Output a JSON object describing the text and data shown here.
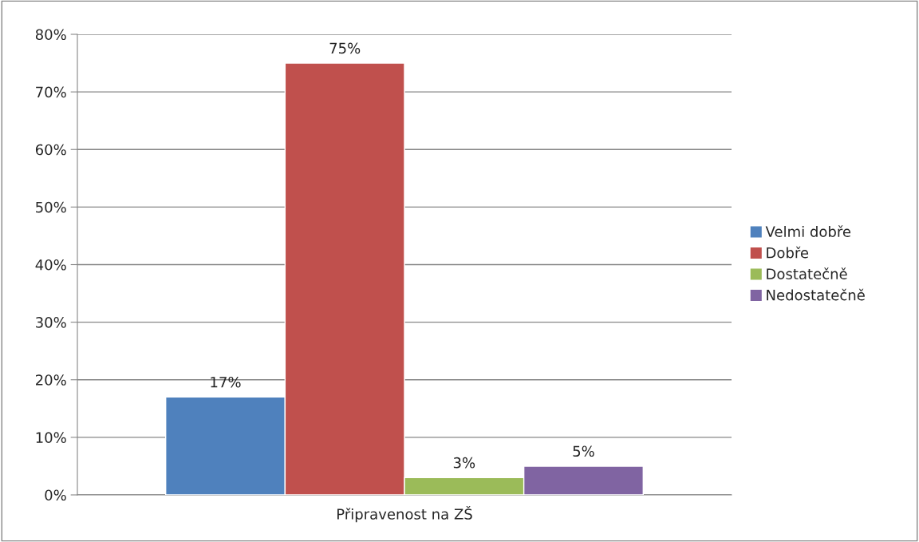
{
  "chart_data": {
    "type": "bar",
    "categories": [
      "Připravenost na ZŠ"
    ],
    "series": [
      {
        "name": "Velmi dobře",
        "color": "#4f81bd",
        "values": [
          17
        ],
        "value_labels": [
          "17%"
        ]
      },
      {
        "name": "Dobře",
        "color": "#c0504d",
        "values": [
          75
        ],
        "value_labels": [
          "75%"
        ]
      },
      {
        "name": "Dostatečně",
        "color": "#9bbb59",
        "values": [
          3
        ],
        "value_labels": [
          "3%"
        ]
      },
      {
        "name": "Nedostatečně",
        "color": "#8064a2",
        "values": [
          5
        ],
        "value_labels": [
          "5%"
        ]
      }
    ],
    "ylim": [
      0,
      80
    ],
    "yticks": [
      {
        "value": 0,
        "label": "0%"
      },
      {
        "value": 10,
        "label": "10%"
      },
      {
        "value": 20,
        "label": "20%"
      },
      {
        "value": 30,
        "label": "30%"
      },
      {
        "value": 40,
        "label": "40%"
      },
      {
        "value": 50,
        "label": "50%"
      },
      {
        "value": 60,
        "label": "60%"
      },
      {
        "value": 70,
        "label": "70%"
      },
      {
        "value": 80,
        "label": "80%"
      }
    ],
    "grid": "y",
    "legend": "right"
  }
}
